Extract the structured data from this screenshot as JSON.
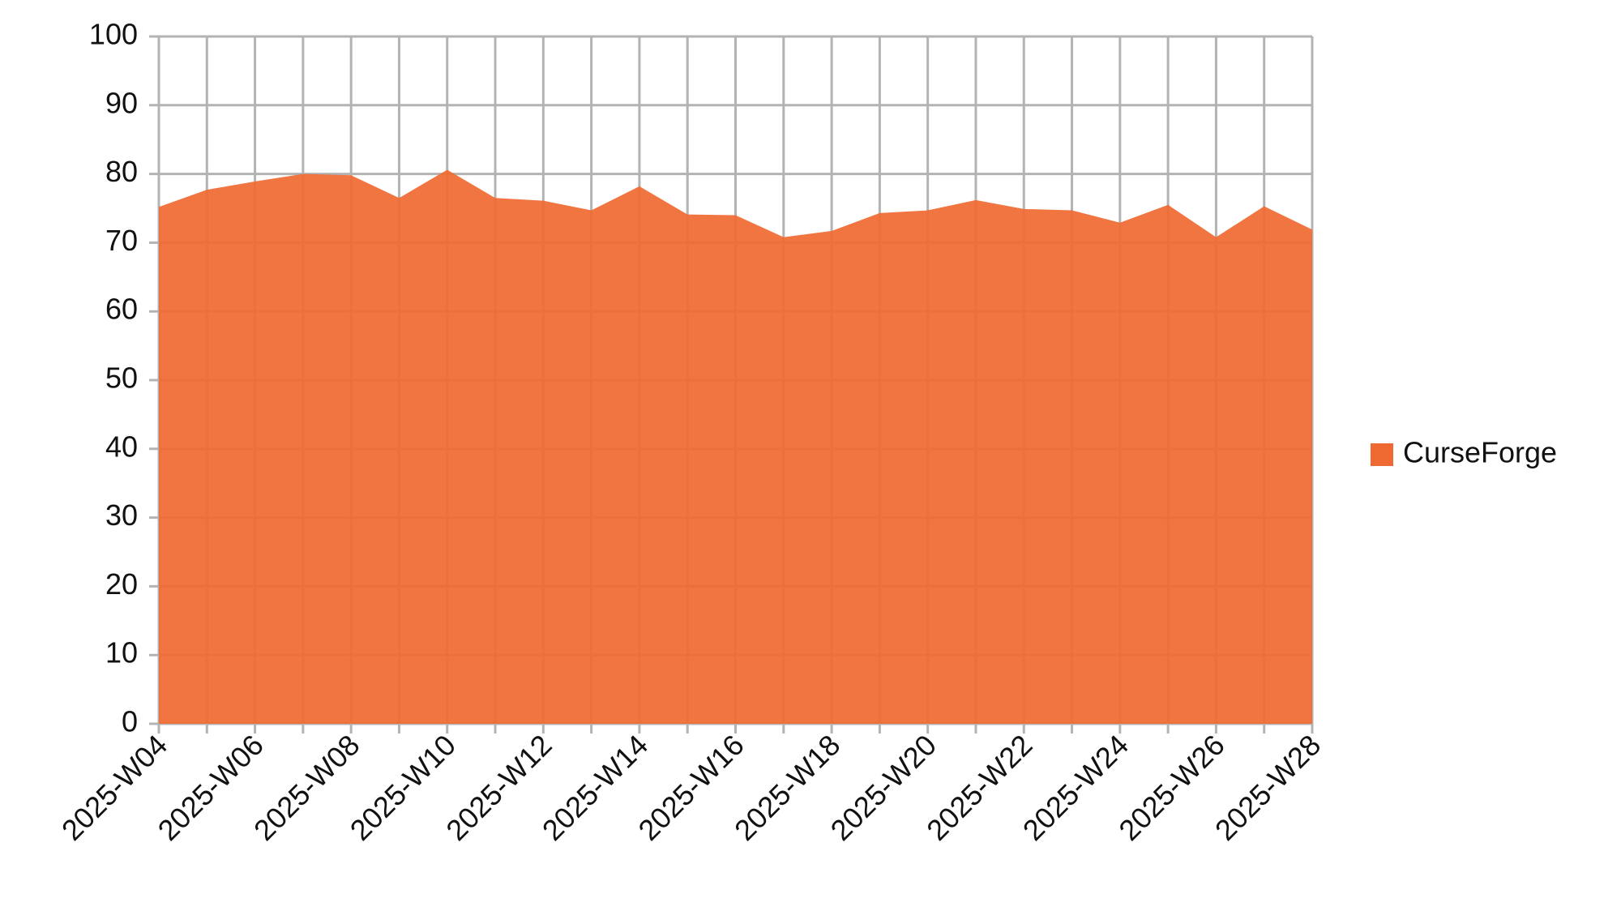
{
  "chart_data": {
    "type": "area",
    "categories": [
      "2025-W04",
      null,
      "2025-W06",
      null,
      "2025-W08",
      null,
      "2025-W10",
      null,
      "2025-W12",
      null,
      "2025-W14",
      null,
      "2025-W16",
      null,
      "2025-W18",
      null,
      "2025-W20",
      null,
      "2025-W22",
      null,
      "2025-W24",
      null,
      "2025-W26",
      null,
      "2025-W28"
    ],
    "series": [
      {
        "name": "CurseForge",
        "color": "#ef6a33",
        "values": [
          75.2,
          77.7,
          78.9,
          80.0,
          79.8,
          76.5,
          80.6,
          76.5,
          76.1,
          74.7,
          78.2,
          74.1,
          74.0,
          70.8,
          71.7,
          74.3,
          74.7,
          76.2,
          74.9,
          74.7,
          72.9,
          75.5,
          70.8,
          75.3,
          71.9
        ]
      }
    ],
    "ylim": [
      0,
      100
    ],
    "yticks": [
      0,
      10,
      20,
      30,
      40,
      50,
      60,
      70,
      80,
      90,
      100
    ],
    "grid": true,
    "legend": "right"
  }
}
